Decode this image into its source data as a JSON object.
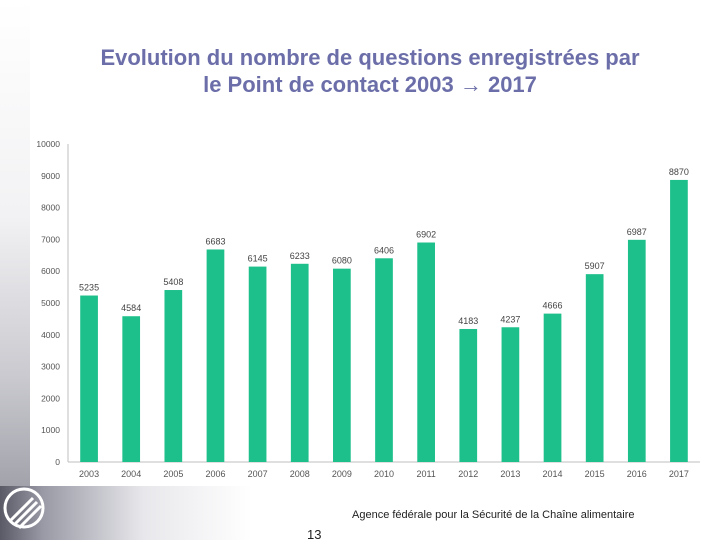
{
  "slide": {
    "title": "Evolution du nombre de questions enregistrées par le Point de contact 2003 → 2017",
    "footer": "Agence fédérale pour la Sécurité de la Chaîne alimentaire",
    "page_number": "13"
  },
  "colors": {
    "bar": "#1dbf8a",
    "title": "#6b6ea8"
  },
  "chart_data": {
    "type": "bar",
    "title": "",
    "xlabel": "",
    "ylabel": "",
    "ylim": [
      0,
      10000
    ],
    "yticks": [
      0,
      1000,
      2000,
      3000,
      4000,
      5000,
      6000,
      7000,
      8000,
      9000,
      10000
    ],
    "categories": [
      "2003",
      "2004",
      "2005",
      "2006",
      "2007",
      "2008",
      "2009",
      "2010",
      "2011",
      "2012",
      "2013",
      "2014",
      "2015",
      "2016",
      "2017"
    ],
    "values": [
      5235,
      4584,
      5408,
      6683,
      6145,
      6233,
      6080,
      6406,
      6902,
      4183,
      4237,
      4666,
      5907,
      6987,
      8870
    ],
    "grid": false,
    "legend": "none"
  }
}
